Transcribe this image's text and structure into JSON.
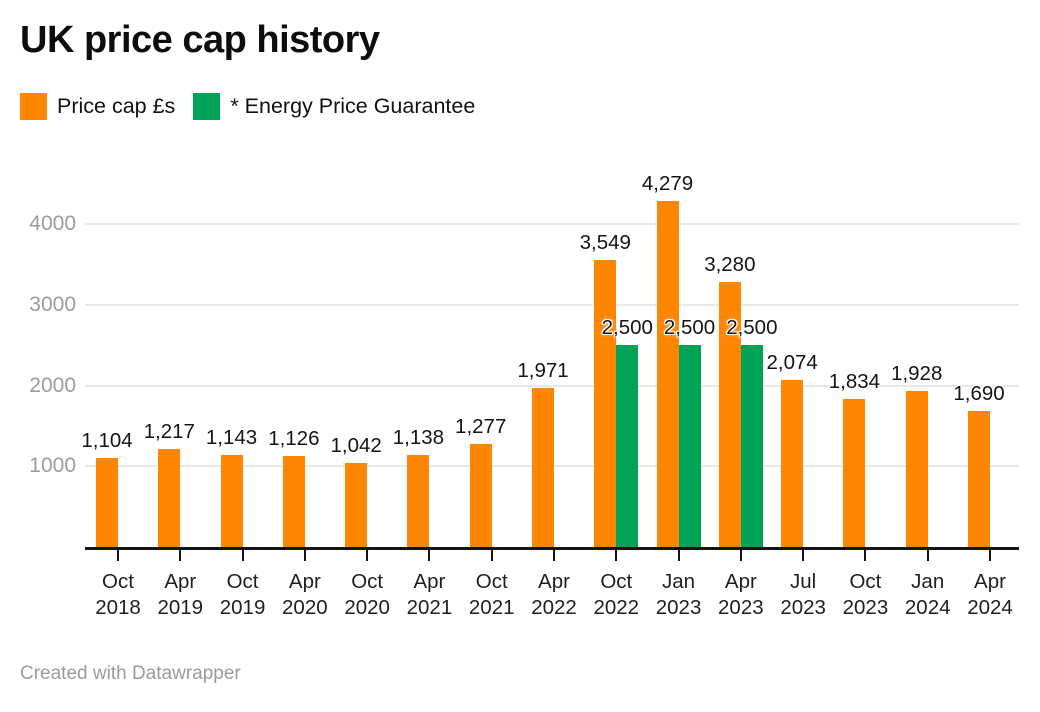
{
  "title": "UK price cap history",
  "legend": [
    {
      "label": "Price cap £s",
      "color": "#ff8600"
    },
    {
      "label": "* Energy Price Guarantee",
      "color": "#00a256"
    }
  ],
  "footer": "Created with Datawrapper",
  "chart_data": {
    "type": "bar",
    "title": "UK price cap history",
    "categories": [
      "Oct 2018",
      "Apr 2019",
      "Oct 2019",
      "Apr 2020",
      "Oct 2020",
      "Apr 2021",
      "Oct 2021",
      "Apr 2022",
      "Oct 2022",
      "Jan 2023",
      "Apr 2023",
      "Jul 2023",
      "Oct 2023",
      "Jan 2024",
      "Apr 2024"
    ],
    "series": [
      {
        "name": "Price cap £s",
        "color": "#ff8600",
        "values": [
          1104,
          1217,
          1143,
          1126,
          1042,
          1138,
          1277,
          1971,
          3549,
          4279,
          3280,
          2074,
          1834,
          1928,
          1690
        ],
        "labels": [
          "1,104",
          "1,217",
          "1,143",
          "1,126",
          "1,042",
          "1,138",
          "1,277",
          "1,971",
          "3,549",
          "4,279",
          "3,280",
          "2,074",
          "1,834",
          "1,928",
          "1,690"
        ]
      },
      {
        "name": "* Energy Price Guarantee",
        "color": "#00a256",
        "values": [
          null,
          null,
          null,
          null,
          null,
          null,
          null,
          null,
          2500,
          2500,
          2500,
          null,
          null,
          null,
          null
        ],
        "labels": [
          null,
          null,
          null,
          null,
          null,
          null,
          null,
          null,
          "2,500",
          "2,500",
          "2,500",
          null,
          null,
          null,
          null
        ]
      }
    ],
    "y_axis": {
      "ticks": [
        1000,
        2000,
        3000,
        4000
      ],
      "ylim": [
        0,
        4400
      ],
      "grid": true
    },
    "xlabel": "",
    "ylabel": "",
    "legend_position": "top-left",
    "attribution": "Created with Datawrapper"
  }
}
